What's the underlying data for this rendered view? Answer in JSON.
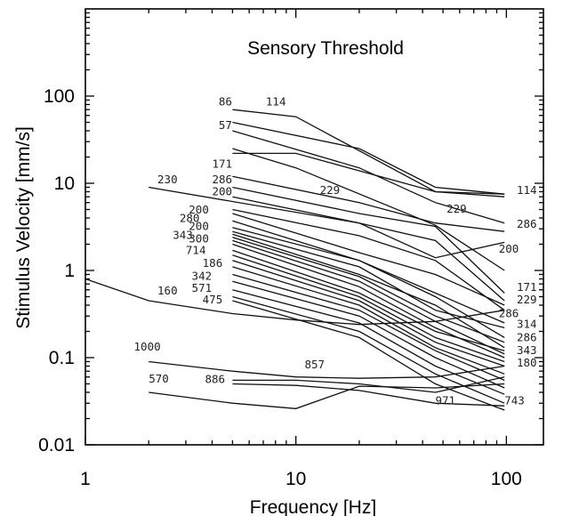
{
  "chart_data": {
    "type": "line",
    "title": "Sensory Threshold",
    "xlabel": "Frequency [Hz]",
    "ylabel": "Stimulus Velocity [mm/s]",
    "x_scale": "log",
    "y_scale": "log",
    "xlim": [
      1,
      150
    ],
    "ylim": [
      0.01,
      1000
    ],
    "x_major_ticks": [
      1,
      10,
      100
    ],
    "x_tick_labels": [
      "1",
      "10",
      "100"
    ],
    "y_major_ticks": [
      0.01,
      0.1,
      1,
      10,
      100
    ],
    "y_tick_labels": [
      "0.01",
      "0.1",
      "1",
      "10",
      "100"
    ],
    "grid": false,
    "legend": "none",
    "series": [
      {
        "x": [
          5,
          10,
          46,
          98
        ],
        "y": [
          70,
          58,
          8,
          7
        ]
      },
      {
        "x": [
          5,
          20,
          46,
          98
        ],
        "y": [
          50,
          25,
          9,
          7.5
        ]
      },
      {
        "x": [
          5,
          20,
          46,
          98
        ],
        "y": [
          40,
          15,
          6,
          3.5
        ]
      },
      {
        "x": [
          5,
          10,
          46,
          98
        ],
        "y": [
          25,
          15,
          3.3,
          1.0
        ]
      },
      {
        "x": [
          5,
          10,
          46,
          98
        ],
        "y": [
          22,
          22,
          8,
          7.5
        ]
      },
      {
        "x": [
          5,
          20,
          46,
          98
        ],
        "y": [
          12,
          6,
          3.5,
          2.8
        ]
      },
      {
        "x": [
          5,
          20,
          46,
          98
        ],
        "y": [
          9,
          4.5,
          3.2,
          0.55
        ]
      },
      {
        "x": [
          5,
          20,
          46,
          98
        ],
        "y": [
          7,
          3.5,
          2.2,
          0.45
        ]
      },
      {
        "x": [
          2,
          20,
          46,
          98
        ],
        "y": [
          9,
          3.5,
          1.4,
          2.1
        ]
      },
      {
        "x": [
          5,
          20,
          46,
          98
        ],
        "y": [
          5,
          2.5,
          1.3,
          0.35
        ]
      },
      {
        "x": [
          5,
          20,
          46,
          98
        ],
        "y": [
          4.5,
          1.6,
          0.9,
          0.4
        ]
      },
      {
        "x": [
          5,
          20,
          46,
          98
        ],
        "y": [
          3.7,
          1.3,
          0.55,
          0.25
        ]
      },
      {
        "x": [
          5,
          20,
          46,
          98
        ],
        "y": [
          3.1,
          1.3,
          0.5,
          0.17
        ]
      },
      {
        "x": [
          5,
          20,
          46,
          98
        ],
        "y": [
          2.8,
          1.1,
          0.35,
          0.22
        ]
      },
      {
        "x": [
          5,
          20,
          46,
          98
        ],
        "y": [
          2.6,
          0.9,
          0.4,
          0.13
        ]
      },
      {
        "x": [
          5,
          20,
          46,
          98
        ],
        "y": [
          2.4,
          0.85,
          0.3,
          0.15
        ]
      },
      {
        "x": [
          5,
          20,
          46,
          98
        ],
        "y": [
          2.2,
          0.75,
          0.26,
          0.11
        ]
      },
      {
        "x": [
          5,
          20,
          46,
          98
        ],
        "y": [
          2.0,
          0.65,
          0.22,
          0.1
        ]
      },
      {
        "x": [
          5,
          20,
          46,
          98
        ],
        "y": [
          1.7,
          0.55,
          0.2,
          0.12
        ]
      },
      {
        "x": [
          5,
          20,
          46,
          98
        ],
        "y": [
          1.5,
          0.5,
          0.17,
          0.09
        ]
      },
      {
        "x": [
          5,
          20,
          46,
          98
        ],
        "y": [
          1.3,
          0.45,
          0.15,
          0.08
        ]
      },
      {
        "x": [
          5,
          20,
          46,
          98
        ],
        "y": [
          1.1,
          0.4,
          0.13,
          0.065
        ]
      },
      {
        "x": [
          5,
          20,
          46,
          98
        ],
        "y": [
          0.9,
          0.35,
          0.12,
          0.055
        ]
      },
      {
        "x": [
          5,
          20,
          46,
          98
        ],
        "y": [
          0.75,
          0.3,
          0.1,
          0.045
        ]
      },
      {
        "x": [
          5,
          20,
          46,
          98
        ],
        "y": [
          0.6,
          0.25,
          0.08,
          0.038
        ]
      },
      {
        "x": [
          5,
          20,
          46,
          98
        ],
        "y": [
          0.5,
          0.2,
          0.065,
          0.03
        ]
      },
      {
        "x": [
          5,
          20,
          46,
          98
        ],
        "y": [
          0.45,
          0.17,
          0.05,
          0.025
        ]
      },
      {
        "x": [
          1,
          2,
          5,
          10,
          20,
          46,
          98
        ],
        "y": [
          0.8,
          0.45,
          0.32,
          0.27,
          0.24,
          0.26,
          0.35
        ]
      },
      {
        "x": [
          2,
          5,
          10,
          20,
          46,
          98
        ],
        "y": [
          0.09,
          0.07,
          0.06,
          0.058,
          0.06,
          0.08
        ]
      },
      {
        "x": [
          2,
          5,
          10,
          20,
          46,
          98
        ],
        "y": [
          0.04,
          0.03,
          0.026,
          0.047,
          0.045,
          0.05
        ]
      },
      {
        "x": [
          5,
          10,
          20,
          46,
          98
        ],
        "y": [
          0.05,
          0.048,
          0.042,
          0.03,
          0.028
        ]
      },
      {
        "x": [
          5,
          10,
          20,
          46,
          98
        ],
        "y": [
          0.055,
          0.055,
          0.05,
          0.04,
          0.06
        ]
      }
    ],
    "annotations": [
      {
        "text": "86",
        "x": 4.3,
        "y": 78
      },
      {
        "text": "114",
        "x": 7.2,
        "y": 78
      },
      {
        "text": "57",
        "x": 4.3,
        "y": 42
      },
      {
        "text": "171",
        "x": 4.0,
        "y": 15
      },
      {
        "text": "230",
        "x": 2.2,
        "y": 10
      },
      {
        "text": "286",
        "x": 4.0,
        "y": 10
      },
      {
        "text": "200",
        "x": 4.0,
        "y": 7.3
      },
      {
        "text": "229",
        "x": 13,
        "y": 7.5
      },
      {
        "text": "229",
        "x": 52,
        "y": 4.6
      },
      {
        "text": "200",
        "x": 3.1,
        "y": 4.5
      },
      {
        "text": "280",
        "x": 2.8,
        "y": 3.6
      },
      {
        "text": "200",
        "x": 3.1,
        "y": 2.9
      },
      {
        "text": "343",
        "x": 2.6,
        "y": 2.3
      },
      {
        "text": "300",
        "x": 3.1,
        "y": 2.1
      },
      {
        "text": "714",
        "x": 3.0,
        "y": 1.55
      },
      {
        "text": "186",
        "x": 3.6,
        "y": 1.1
      },
      {
        "text": "342",
        "x": 3.2,
        "y": 0.78
      },
      {
        "text": "571",
        "x": 3.2,
        "y": 0.57
      },
      {
        "text": "475",
        "x": 3.6,
        "y": 0.42
      },
      {
        "text": "160",
        "x": 2.2,
        "y": 0.53
      },
      {
        "text": "1000",
        "x": 1.7,
        "y": 0.12
      },
      {
        "text": "857",
        "x": 11,
        "y": 0.075
      },
      {
        "text": "570",
        "x": 2.0,
        "y": 0.052
      },
      {
        "text": "886",
        "x": 3.7,
        "y": 0.051
      },
      {
        "text": "971",
        "x": 46,
        "y": 0.029
      },
      {
        "text": "743",
        "x": 98,
        "y": 0.029
      },
      {
        "text": "114",
        "x": 112,
        "y": 7.5
      },
      {
        "text": "286",
        "x": 112,
        "y": 3.1
      },
      {
        "text": "200",
        "x": 92,
        "y": 1.6
      },
      {
        "text": "171",
        "x": 112,
        "y": 0.58
      },
      {
        "text": "229",
        "x": 112,
        "y": 0.42
      },
      {
        "text": "286",
        "x": 92,
        "y": 0.29
      },
      {
        "text": "314",
        "x": 112,
        "y": 0.22
      },
      {
        "text": "286",
        "x": 112,
        "y": 0.155
      },
      {
        "text": "343",
        "x": 112,
        "y": 0.11
      },
      {
        "text": "180",
        "x": 112,
        "y": 0.079
      }
    ]
  }
}
